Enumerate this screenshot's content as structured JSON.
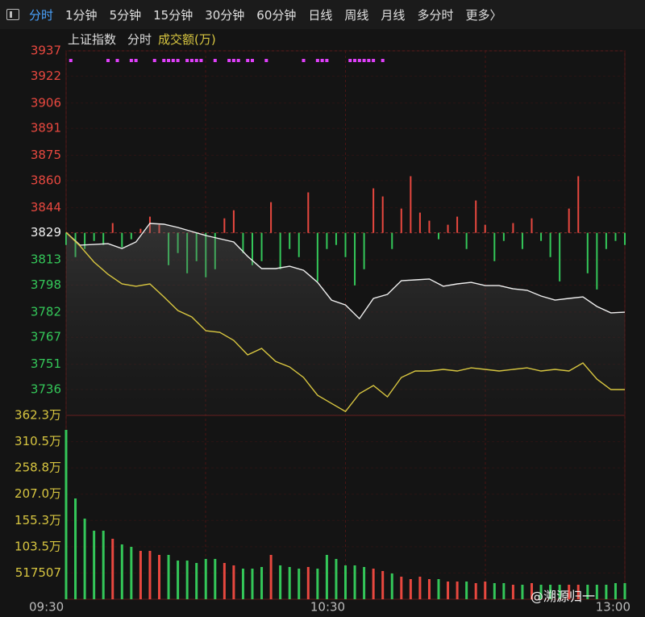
{
  "toolbar": {
    "tabs": [
      "分时",
      "1分钟",
      "5分钟",
      "15分钟",
      "30分钟",
      "60分钟",
      "日线",
      "周线",
      "月线",
      "多分时",
      "更多〉"
    ],
    "active": 0
  },
  "chart_data": {
    "type": "line",
    "subtitle": "分时",
    "x": [
      0,
      3,
      6,
      9,
      12,
      15,
      18,
      21,
      24,
      27,
      30,
      33,
      36,
      39,
      42,
      45,
      48,
      51,
      54,
      57,
      60,
      63,
      66,
      69,
      72,
      75,
      78,
      81,
      84,
      87,
      90,
      93,
      96,
      99,
      102,
      105,
      108,
      111,
      114,
      117,
      120
    ],
    "xlim": [
      0,
      120
    ],
    "xticks": [
      {
        "value": 0,
        "label": "09:30"
      },
      {
        "value": 60,
        "label": "10:30"
      },
      {
        "value": 120,
        "label": "13:00"
      }
    ],
    "ylim": [
      3720.7,
      3937
    ],
    "yticks": [
      3937,
      3922,
      3906,
      3891,
      3875,
      3860,
      3844,
      3829,
      3813,
      3798,
      3782,
      3767,
      3751,
      3736
    ],
    "baseline": 3829,
    "grid": true,
    "up_color": "#e8483f",
    "down_color": "#34c759",
    "series": [
      {
        "name": "上证指数",
        "color": "#f0f0f0",
        "values": [
          3829.3,
          3821.7,
          3822.1,
          3822.6,
          3819.7,
          3823.6,
          3834.6,
          3834.1,
          3832.2,
          3829.8,
          3827.4,
          3825.5,
          3823.6,
          3815.0,
          3807.8,
          3807.8,
          3809.2,
          3806.8,
          3799.6,
          3789.1,
          3786.2,
          3778.1,
          3790.1,
          3792.5,
          3800.6,
          3801.1,
          3801.6,
          3797.3,
          3798.7,
          3799.6,
          3797.7,
          3797.7,
          3795.8,
          3794.9,
          3791.5,
          3789.1,
          3790.1,
          3791.0,
          3785.3,
          3781.5,
          3781.9
        ]
      },
      {
        "color": "#d8c640",
        "values": [
          3829.3,
          3821.2,
          3811.6,
          3804.4,
          3798.7,
          3797.3,
          3798.7,
          3791.0,
          3782.9,
          3779.1,
          3770.9,
          3770.0,
          3765.2,
          3756.6,
          3760.4,
          3752.7,
          3749.4,
          3743.2,
          3732.6,
          3727.8,
          3723.0,
          3733.6,
          3738.4,
          3731.7,
          3743.2,
          3747.0,
          3747.0,
          3748.0,
          3747.0,
          3748.9,
          3748.0,
          3747.0,
          3748.0,
          3748.9,
          3747.0,
          3748.0,
          3747.0,
          3751.8,
          3742.2,
          3736.0,
          3736.0
        ]
      }
    ],
    "bar_x": [
      0,
      2,
      4,
      6,
      8,
      10,
      12,
      14,
      16,
      18,
      20,
      22,
      24,
      26,
      28,
      30,
      32,
      34,
      36,
      38,
      40,
      42,
      44,
      46,
      48,
      50,
      52,
      54,
      56,
      58,
      60,
      62,
      64,
      66,
      68,
      70,
      72,
      74,
      76,
      78,
      80,
      82,
      84,
      86,
      88,
      90,
      92,
      94,
      96,
      98,
      100,
      102,
      104,
      106,
      108,
      110,
      112,
      114,
      116,
      118,
      120
    ],
    "breadth": {
      "values": [
        3821.8,
        3814.6,
        3819.4,
        3824.2,
        3821.8,
        3834.8,
        3820.4,
        3825.2,
        3831.4,
        3838.6,
        3833.8,
        3809.8,
        3817.0,
        3805.0,
        3812.2,
        3802.6,
        3807.4,
        3837.6,
        3842.4,
        3817.0,
        3809.8,
        3812.2,
        3847.2,
        3807.4,
        3819.4,
        3814.6,
        3853.0,
        3800.2,
        3819.4,
        3821.8,
        3814.6,
        3797.8,
        3807.4,
        3855.4,
        3850.6,
        3819.4,
        3843.4,
        3862.6,
        3841.0,
        3836.2,
        3825.2,
        3833.8,
        3838.6,
        3819.4,
        3848.2,
        3833.8,
        3812.2,
        3824.2,
        3834.8,
        3819.4,
        3837.6,
        3824.2,
        3814.6,
        3800.2,
        3843.4,
        3862.6,
        3805.0,
        3795.4,
        3819.4,
        3824.2,
        3821.8
      ]
    },
    "volume": {
      "label": "成交额(万)",
      "color": "#d8c640",
      "y2lim": [
        0,
        3622549
      ],
      "y2ticks": [
        {
          "value": 3622549,
          "label": "362.3万"
        },
        {
          "value": 3105042,
          "label": "310.5万"
        },
        {
          "value": 2587535,
          "label": "258.8万"
        },
        {
          "value": 2070028,
          "label": "207.0万"
        },
        {
          "value": 1552521,
          "label": "155.3万"
        },
        {
          "value": 1035014,
          "label": "103.5万"
        },
        517507
      ],
      "values": [
        3336500,
        1986000,
        1588800,
        1350500,
        1350500,
        1191600,
        1080400,
        1032700,
        953300,
        953300,
        873900,
        873900,
        762600,
        762600,
        715000,
        794400,
        794400,
        715000,
        667300,
        603800,
        603800,
        635500,
        873900,
        667300,
        635500,
        603800,
        635500,
        603800,
        873900,
        794400,
        667300,
        667300,
        635500,
        603800,
        556100,
        508400,
        444900,
        397200,
        444900,
        397200,
        397200,
        349500,
        349500,
        349500,
        317800,
        349500,
        317800,
        317800,
        286000,
        286000,
        317800,
        286000,
        286000,
        286000,
        286000,
        286000,
        286000,
        286000,
        286000,
        317800,
        317800
      ]
    },
    "signals": {
      "color": "#e040fb",
      "x": [
        1,
        9,
        11,
        14,
        15,
        19,
        21,
        22,
        23,
        24,
        26,
        27,
        28,
        29,
        32,
        35,
        36,
        37,
        39,
        40,
        43,
        51,
        54,
        55,
        56,
        61,
        62,
        63,
        64,
        65,
        66,
        68
      ]
    }
  },
  "watermark": "@溯源归一"
}
